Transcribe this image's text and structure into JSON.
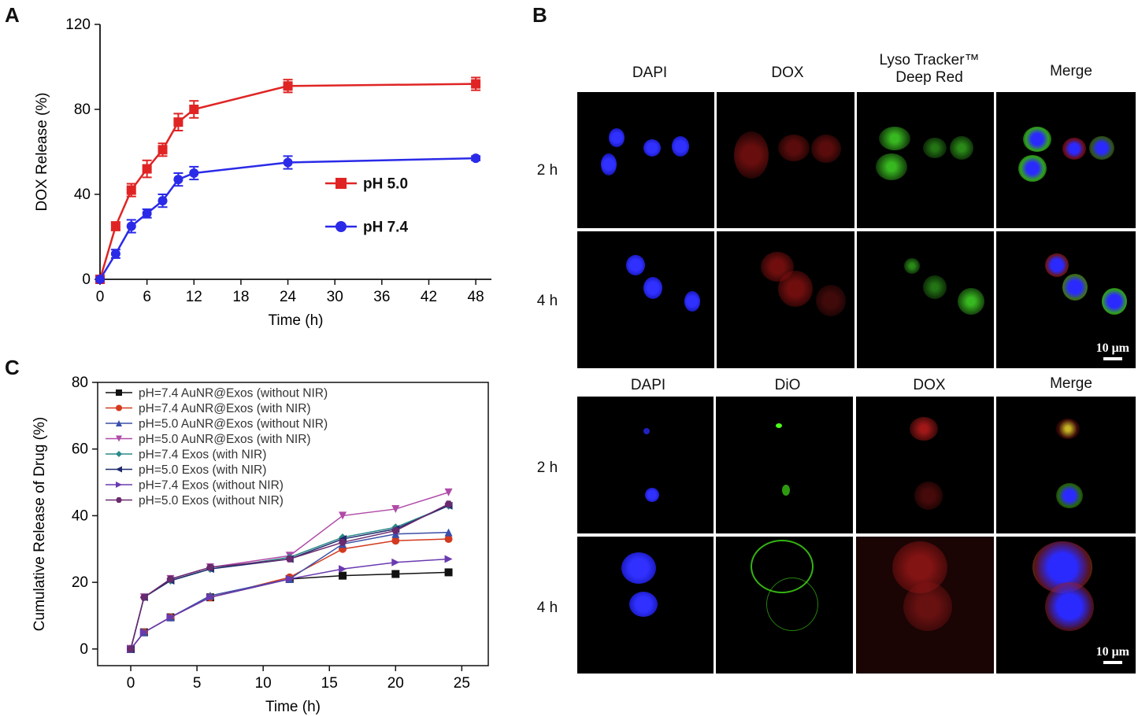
{
  "panel_labels": {
    "a": "A",
    "b": "B",
    "c": "C"
  },
  "chart_data": [
    {
      "id": "A",
      "type": "line",
      "xlabel": "Time (h)",
      "ylabel": "DOX Release  (%)",
      "xticks": [
        0,
        6,
        12,
        18,
        24,
        30,
        36,
        42,
        48
      ],
      "yticks": [
        0,
        40,
        80,
        120
      ],
      "xlim": [
        0,
        50
      ],
      "ylim": [
        0,
        120
      ],
      "legend_position": "center-right",
      "series": [
        {
          "name": "pH 5.0",
          "color": "#e02424",
          "marker": "square",
          "x": [
            0,
            2,
            4,
            6,
            8,
            10,
            12,
            24,
            48
          ],
          "y": [
            0,
            25,
            42,
            52,
            61,
            74,
            80,
            91,
            92
          ],
          "err": [
            0,
            2,
            3,
            4,
            3,
            4,
            4,
            3,
            3
          ]
        },
        {
          "name": "pH 7.4",
          "color": "#2a2ae8",
          "marker": "circle",
          "x": [
            0,
            2,
            4,
            6,
            8,
            10,
            12,
            24,
            48
          ],
          "y": [
            0,
            12,
            25,
            31,
            37,
            47,
            50,
            55,
            57
          ],
          "err": [
            0,
            2,
            3,
            2,
            3,
            3,
            3,
            3,
            1
          ]
        }
      ]
    },
    {
      "id": "C",
      "type": "line",
      "xlabel": "Time (h)",
      "ylabel": "Cumulative Release of Drug (%)",
      "xticks": [
        0,
        5,
        10,
        15,
        20,
        25
      ],
      "yticks": [
        0,
        20,
        40,
        60,
        80
      ],
      "xlim": [
        -2.5,
        27
      ],
      "ylim": [
        -5,
        80
      ],
      "legend_position": "top-left",
      "series": [
        {
          "name": "pH=7.4 AuNR@Exos (without NIR)",
          "color": "#111111",
          "marker": "square",
          "x": [
            0,
            1,
            3,
            6,
            12,
            16,
            20,
            24
          ],
          "y": [
            0,
            5,
            9.5,
            15.5,
            21,
            22,
            22.5,
            23
          ]
        },
        {
          "name": "pH=7.4 AuNR@Exos (with NIR)",
          "color": "#d33a1f",
          "marker": "circle",
          "x": [
            0,
            1,
            3,
            6,
            12,
            16,
            20,
            24
          ],
          "y": [
            0,
            5,
            9.5,
            15.5,
            21.5,
            30,
            32.5,
            33
          ]
        },
        {
          "name": "pH=5.0 AuNR@Exos (without NIR)",
          "color": "#3a4fa8",
          "marker": "triangle-up",
          "x": [
            0,
            1,
            3,
            6,
            12,
            16,
            20,
            24
          ],
          "y": [
            0,
            5,
            9.5,
            16,
            21,
            31.5,
            34.5,
            35
          ]
        },
        {
          "name": "pH=5.0 AuNR@Exos (with NIR)",
          "color": "#b04aa8",
          "marker": "triangle-down",
          "x": [
            0,
            1,
            3,
            6,
            12,
            16,
            20,
            24
          ],
          "y": [
            0,
            15.5,
            21,
            24.5,
            28,
            40,
            42,
            47
          ]
        },
        {
          "name": "pH=7.4 Exos (with NIR)",
          "color": "#2a8a8a",
          "marker": "diamond",
          "x": [
            0,
            1,
            3,
            6,
            12,
            16,
            20,
            24
          ],
          "y": [
            0,
            15.5,
            20.5,
            24,
            27.5,
            33.5,
            36.5,
            43
          ]
        },
        {
          "name": "pH=5.0 Exos (with NIR)",
          "color": "#1e2a6e",
          "marker": "triangle-left",
          "x": [
            0,
            1,
            3,
            6,
            12,
            16,
            20,
            24
          ],
          "y": [
            0,
            15.5,
            20.5,
            24,
            27,
            33,
            36,
            43
          ]
        },
        {
          "name": "pH=7.4 Exos (without NIR)",
          "color": "#6a3ab0",
          "marker": "triangle-right",
          "x": [
            0,
            1,
            3,
            6,
            12,
            16,
            20,
            24
          ],
          "y": [
            0,
            5,
            9.5,
            15.5,
            21,
            24,
            26,
            27
          ]
        },
        {
          "name": "pH=5.0 Exos (without NIR)",
          "color": "#6a2a6e",
          "marker": "hexagon",
          "x": [
            0,
            1,
            3,
            6,
            12,
            16,
            20,
            24
          ],
          "y": [
            0,
            15.5,
            21,
            24.5,
            27,
            32,
            35.5,
            43.5
          ]
        }
      ]
    }
  ],
  "micrographs": {
    "top": {
      "columns": [
        "DAPI",
        "DOX",
        "Lyso Tracker™",
        "Merge"
      ],
      "column3_line2": "Deep Red",
      "rows": [
        "2 h",
        "4 h"
      ],
      "scale_label": "10 μm"
    },
    "bottom": {
      "columns": [
        "DAPI",
        "DiO",
        "DOX",
        "Merge"
      ],
      "rows": [
        "2 h",
        "4 h"
      ],
      "scale_label": "10 μm"
    },
    "colors": {
      "nucleus": "#1c1cff",
      "dox": "#c0201c",
      "lyso": "#3ee02a",
      "dio": "#4cff1a"
    }
  }
}
